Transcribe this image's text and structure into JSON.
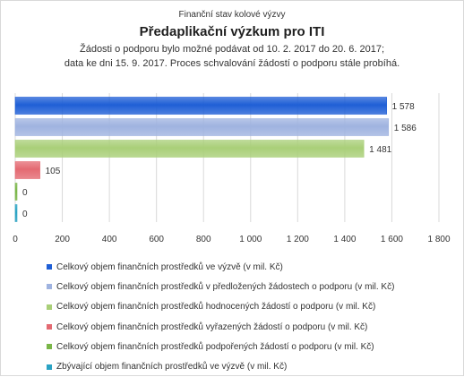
{
  "chart_data": {
    "type": "bar",
    "orientation": "horizontal",
    "supertitle": "Finanční stav kolové výzvy",
    "title": "Předaplikační výzkum pro ITI",
    "subtitle_lines": [
      "Žádosti o podporu bylo možné  podávat od 10. 2. 2017 do 20. 6. 2017;",
      "data ke dni 15. 9. 2017. Proces schvalování žádostí o podporu stále probíhá."
    ],
    "xlim": [
      0,
      1800
    ],
    "xticks": [
      0,
      200,
      400,
      600,
      800,
      1000,
      1200,
      1400,
      1600,
      1800
    ],
    "xtick_labels": [
      "0",
      "200",
      "400",
      "600",
      "800",
      "1 000",
      "1 200",
      "1 400",
      "1 600",
      "1 800"
    ],
    "grid": true,
    "legend_position": "bottom",
    "series": [
      {
        "name": "Celkový objem finančních prostředků ve výzvě (v mil. Kč)",
        "value": 1578,
        "label": "1 578",
        "color": "#1f5fd6"
      },
      {
        "name": "Celkový objem finančních prostředků v předložených žádostech o podporu (v mil. Kč)",
        "value": 1586,
        "label": "1 586",
        "color": "#9fb3e0"
      },
      {
        "name": "Celkový objem finančních prostředků hodnocených žádostí o podporu (v mil. Kč)",
        "value": 1481,
        "label": "1 481",
        "color": "#a9cf78"
      },
      {
        "name": "Celkový objem finančních prostředků vyřazených žádostí o podporu (v mil. Kč)",
        "value": 105,
        "label": "105",
        "color": "#e46a72"
      },
      {
        "name": "Celkový objem finančních prostředků podpořených žádostí o podporu (v mil. Kč)",
        "value": 0,
        "label": "0",
        "color": "#7ab648"
      },
      {
        "name": "Zbývající objem finančních prostředků ve výzvě (v mil. Kč)",
        "value": 0,
        "label": "0",
        "color": "#2aa3c4"
      }
    ]
  }
}
